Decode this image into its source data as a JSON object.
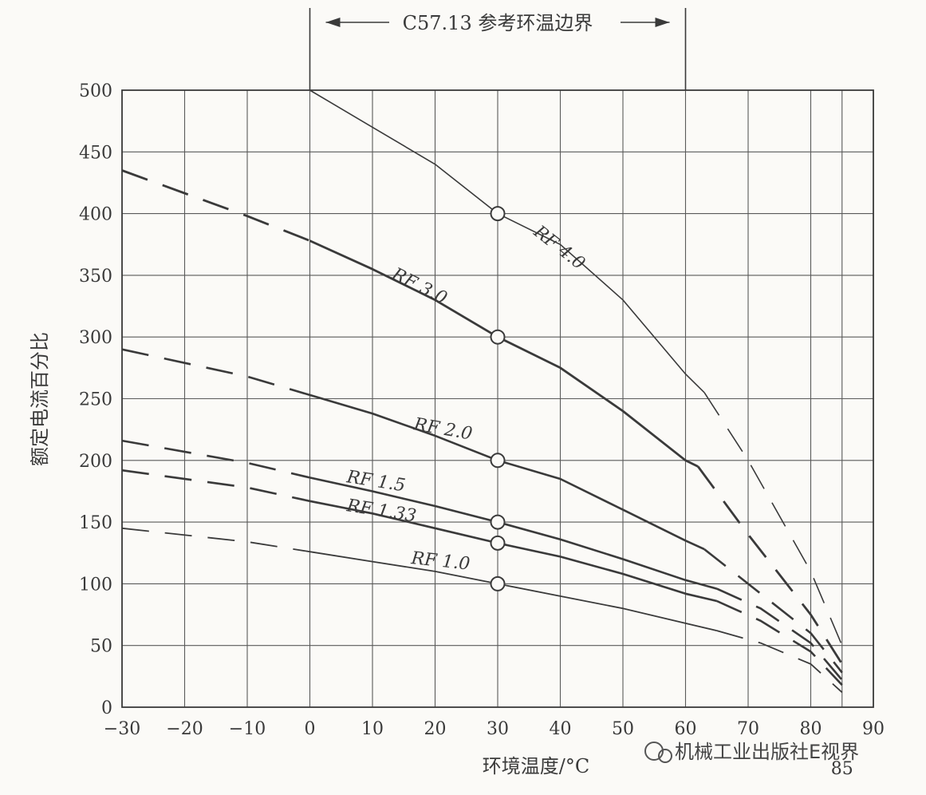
{
  "chart_data": {
    "type": "line",
    "title": "",
    "xlabel": "环境温度/°C",
    "ylabel": "额定电流百分比",
    "xlim": [
      -30,
      90
    ],
    "ylim": [
      0,
      500
    ],
    "xticks": [
      -30,
      -20,
      -10,
      0,
      10,
      20,
      30,
      40,
      50,
      60,
      70,
      80,
      90
    ],
    "yticks": [
      0,
      50,
      100,
      150,
      200,
      250,
      300,
      350,
      400,
      450,
      500
    ],
    "extra_xtick_label": "85",
    "grid": true,
    "reference_boundary": {
      "label": "C57.13 参考环温边界",
      "x_start": 0,
      "x_end": 60
    },
    "marker_x": 30,
    "series": [
      {
        "name": "RF 4.0",
        "solid": [
          [
            0,
            500
          ],
          [
            10,
            470
          ],
          [
            20,
            440
          ],
          [
            30,
            400
          ],
          [
            40,
            375
          ],
          [
            50,
            330
          ],
          [
            60,
            270
          ],
          [
            63,
            255
          ]
        ],
        "dashed": [
          [
            63,
            255
          ],
          [
            70,
            200
          ],
          [
            80,
            110
          ],
          [
            85,
            50
          ]
        ]
      },
      {
        "name": "RF 3.0",
        "solid": [
          [
            0,
            378
          ],
          [
            10,
            355
          ],
          [
            20,
            330
          ],
          [
            30,
            300
          ],
          [
            40,
            275
          ],
          [
            50,
            240
          ],
          [
            60,
            200
          ],
          [
            62,
            195
          ]
        ],
        "dashed": [
          [
            -30,
            435
          ],
          [
            -10,
            398
          ],
          [
            0,
            378
          ]
        ],
        "dashed_right": [
          [
            62,
            195
          ],
          [
            70,
            140
          ],
          [
            80,
            75
          ],
          [
            85,
            35
          ]
        ]
      },
      {
        "name": "RF 2.0",
        "solid": [
          [
            0,
            253
          ],
          [
            10,
            238
          ],
          [
            20,
            220
          ],
          [
            30,
            200
          ],
          [
            40,
            185
          ],
          [
            50,
            160
          ],
          [
            60,
            135
          ],
          [
            63,
            128
          ]
        ],
        "dashed": [
          [
            -30,
            290
          ],
          [
            -10,
            268
          ],
          [
            0,
            253
          ]
        ],
        "dashed_right": [
          [
            63,
            128
          ],
          [
            70,
            100
          ],
          [
            80,
            60
          ],
          [
            85,
            28
          ]
        ]
      },
      {
        "name": "RF 1.5",
        "solid": [
          [
            0,
            186
          ],
          [
            10,
            175
          ],
          [
            20,
            163
          ],
          [
            30,
            150
          ],
          [
            40,
            136
          ],
          [
            50,
            120
          ],
          [
            60,
            103
          ],
          [
            65,
            96
          ]
        ],
        "dashed": [
          [
            -30,
            216
          ],
          [
            -10,
            198
          ],
          [
            0,
            186
          ]
        ],
        "dashed_right": [
          [
            65,
            96
          ],
          [
            72,
            80
          ],
          [
            80,
            52
          ],
          [
            85,
            22
          ]
        ]
      },
      {
        "name": "RF 1.33",
        "solid": [
          [
            0,
            167
          ],
          [
            10,
            157
          ],
          [
            20,
            145
          ],
          [
            30,
            133
          ],
          [
            40,
            122
          ],
          [
            50,
            108
          ],
          [
            60,
            92
          ],
          [
            65,
            86
          ]
        ],
        "dashed": [
          [
            -30,
            192
          ],
          [
            -10,
            178
          ],
          [
            0,
            167
          ]
        ],
        "dashed_right": [
          [
            65,
            86
          ],
          [
            72,
            70
          ],
          [
            80,
            45
          ],
          [
            85,
            18
          ]
        ]
      },
      {
        "name": "RF 1.0",
        "solid": [
          [
            0,
            126
          ],
          [
            10,
            118
          ],
          [
            20,
            110
          ],
          [
            30,
            100
          ],
          [
            40,
            90
          ],
          [
            50,
            80
          ],
          [
            60,
            68
          ],
          [
            65,
            62
          ]
        ],
        "dashed": [
          [
            -30,
            145
          ],
          [
            -10,
            134
          ],
          [
            0,
            126
          ]
        ],
        "dashed_right": [
          [
            65,
            62
          ],
          [
            72,
            52
          ],
          [
            80,
            35
          ],
          [
            85,
            12
          ]
        ]
      }
    ],
    "markers": [
      {
        "series": "RF 4.0",
        "x": 30,
        "y": 400
      },
      {
        "series": "RF 3.0",
        "x": 30,
        "y": 300
      },
      {
        "series": "RF 2.0",
        "x": 30,
        "y": 200
      },
      {
        "series": "RF 1.5",
        "x": 30,
        "y": 150
      },
      {
        "series": "RF 1.33",
        "x": 30,
        "y": 133
      },
      {
        "series": "RF 1.0",
        "x": 30,
        "y": 100
      }
    ]
  },
  "watermark": "机械工业出版社E视界",
  "colors": {
    "ink": "#3a3a3a",
    "grid": "#5a5a5a",
    "background": "#fbfaf7"
  }
}
